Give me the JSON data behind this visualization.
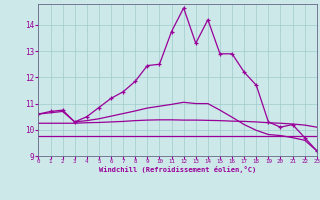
{
  "xlabel": "Windchill (Refroidissement éolien,°C)",
  "background_color": "#cce8e8",
  "line_color": "#990099",
  "xmin": 0,
  "xmax": 23,
  "ymin": 9,
  "ymax": 14.8,
  "yticks": [
    9,
    10,
    11,
    12,
    13,
    14
  ],
  "xticks": [
    0,
    1,
    2,
    3,
    4,
    5,
    6,
    7,
    8,
    9,
    10,
    11,
    12,
    13,
    14,
    15,
    16,
    17,
    18,
    19,
    20,
    21,
    22,
    23
  ],
  "series1_x": [
    0,
    1,
    2,
    3,
    4,
    5,
    6,
    7,
    8,
    9,
    10,
    11,
    12,
    13,
    14,
    15,
    16,
    17,
    18,
    19,
    20,
    21,
    22,
    23
  ],
  "series1_y": [
    10.6,
    10.7,
    10.75,
    10.3,
    10.5,
    10.85,
    11.2,
    11.45,
    11.85,
    12.45,
    12.5,
    13.75,
    14.65,
    13.3,
    14.2,
    12.9,
    12.9,
    12.2,
    11.7,
    10.3,
    10.1,
    10.2,
    9.7,
    9.2
  ],
  "series2_x": [
    0,
    1,
    2,
    3,
    4,
    5,
    6,
    7,
    8,
    9,
    10,
    11,
    12,
    13,
    14,
    15,
    16,
    17,
    18,
    19,
    20,
    21,
    22,
    23
  ],
  "series2_y": [
    9.78,
    9.78,
    9.78,
    9.78,
    9.78,
    9.78,
    9.78,
    9.78,
    9.78,
    9.78,
    9.78,
    9.78,
    9.78,
    9.78,
    9.78,
    9.78,
    9.78,
    9.78,
    9.78,
    9.78,
    9.78,
    9.78,
    9.78,
    9.78
  ],
  "series3_x": [
    0,
    1,
    2,
    3,
    4,
    5,
    6,
    7,
    8,
    9,
    10,
    11,
    12,
    13,
    14,
    15,
    16,
    17,
    18,
    19,
    20,
    21,
    22,
    23
  ],
  "series3_y": [
    10.25,
    10.25,
    10.25,
    10.25,
    10.27,
    10.28,
    10.3,
    10.32,
    10.35,
    10.37,
    10.38,
    10.38,
    10.37,
    10.37,
    10.36,
    10.35,
    10.33,
    10.32,
    10.3,
    10.27,
    10.25,
    10.22,
    10.18,
    10.1
  ],
  "series4_x": [
    0,
    1,
    2,
    3,
    4,
    5,
    6,
    7,
    8,
    9,
    10,
    11,
    12,
    13,
    14,
    15,
    16,
    17,
    18,
    19,
    20,
    21,
    22,
    23
  ],
  "series4_y": [
    10.6,
    10.65,
    10.7,
    10.3,
    10.35,
    10.42,
    10.52,
    10.62,
    10.72,
    10.83,
    10.9,
    10.97,
    11.05,
    11.0,
    11.0,
    10.75,
    10.48,
    10.2,
    9.98,
    9.82,
    9.78,
    9.7,
    9.6,
    9.2
  ]
}
